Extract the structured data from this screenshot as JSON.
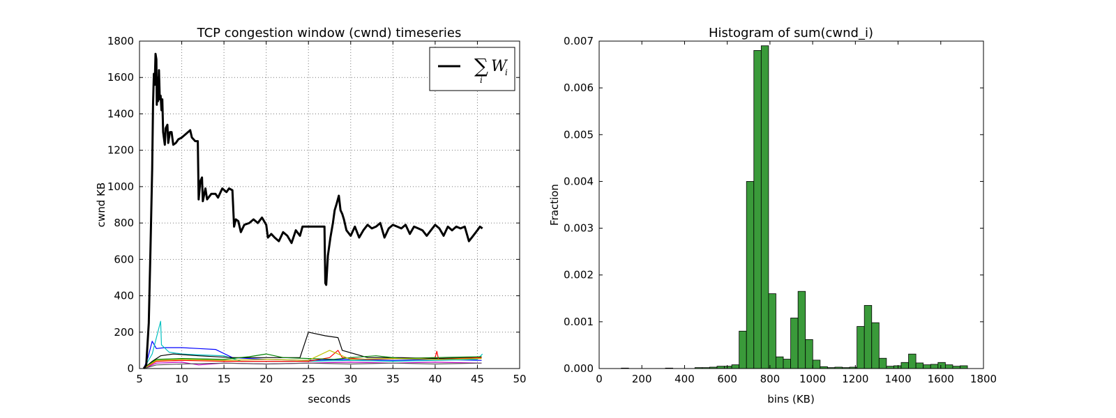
{
  "chart_data": [
    {
      "type": "line",
      "title": "TCP congestion window (cwnd) timeseries",
      "xlabel": "seconds",
      "ylabel": "cwnd KB",
      "xlim": [
        5,
        50
      ],
      "ylim": [
        0,
        1800
      ],
      "xticks": [
        5,
        10,
        15,
        20,
        25,
        30,
        35,
        40,
        45,
        50
      ],
      "yticks": [
        0,
        200,
        400,
        600,
        800,
        1000,
        1200,
        1400,
        1600,
        1800
      ],
      "grid": true,
      "legend": {
        "position": "top-right",
        "entries": [
          {
            "label_main": "∑",
            "label_sub": "i",
            "label_var": "W",
            "label_var_sub": "i",
            "color": "#000000"
          }
        ]
      },
      "series": [
        {
          "name": "∑i Wi",
          "color": "#000000",
          "width": 3,
          "points": [
            [
              5.5,
              0
            ],
            [
              5.8,
              20
            ],
            [
              6.1,
              250
            ],
            [
              6.3,
              650
            ],
            [
              6.5,
              1100
            ],
            [
              6.6,
              1450
            ],
            [
              6.7,
              1620
            ],
            [
              6.8,
              1560
            ],
            [
              6.9,
              1730
            ],
            [
              7.0,
              1700
            ],
            [
              7.05,
              1450
            ],
            [
              7.1,
              1600
            ],
            [
              7.2,
              1470
            ],
            [
              7.3,
              1640
            ],
            [
              7.4,
              1480
            ],
            [
              7.5,
              1500
            ],
            [
              7.6,
              1420
            ],
            [
              7.7,
              1480
            ],
            [
              7.8,
              1300
            ],
            [
              8.0,
              1230
            ],
            [
              8.1,
              1320
            ],
            [
              8.3,
              1340
            ],
            [
              8.4,
              1240
            ],
            [
              8.6,
              1300
            ],
            [
              8.8,
              1300
            ],
            [
              9.0,
              1230
            ],
            [
              9.3,
              1240
            ],
            [
              9.6,
              1260
            ],
            [
              10.0,
              1270
            ],
            [
              10.5,
              1290
            ],
            [
              11.0,
              1310
            ],
            [
              11.2,
              1270
            ],
            [
              11.6,
              1250
            ],
            [
              11.9,
              1250
            ],
            [
              12.0,
              930
            ],
            [
              12.2,
              1030
            ],
            [
              12.4,
              1050
            ],
            [
              12.5,
              920
            ],
            [
              12.8,
              990
            ],
            [
              13.0,
              930
            ],
            [
              13.5,
              960
            ],
            [
              14.0,
              960
            ],
            [
              14.3,
              940
            ],
            [
              14.8,
              990
            ],
            [
              15.3,
              970
            ],
            [
              15.6,
              990
            ],
            [
              16.0,
              980
            ],
            [
              16.2,
              780
            ],
            [
              16.4,
              820
            ],
            [
              16.7,
              810
            ],
            [
              17.0,
              750
            ],
            [
              17.4,
              790
            ],
            [
              18.0,
              800
            ],
            [
              18.5,
              820
            ],
            [
              19.0,
              800
            ],
            [
              19.5,
              830
            ],
            [
              20.0,
              790
            ],
            [
              20.2,
              720
            ],
            [
              20.6,
              740
            ],
            [
              21.0,
              720
            ],
            [
              21.5,
              700
            ],
            [
              22.0,
              750
            ],
            [
              22.5,
              730
            ],
            [
              23.0,
              690
            ],
            [
              23.5,
              760
            ],
            [
              24.0,
              730
            ],
            [
              24.3,
              780
            ],
            [
              26.0,
              780
            ],
            [
              26.9,
              780
            ],
            [
              27.0,
              470
            ],
            [
              27.1,
              460
            ],
            [
              27.3,
              620
            ],
            [
              27.6,
              720
            ],
            [
              27.9,
              800
            ],
            [
              28.1,
              870
            ],
            [
              28.3,
              900
            ],
            [
              28.6,
              950
            ],
            [
              28.8,
              870
            ],
            [
              29.0,
              850
            ],
            [
              29.2,
              820
            ],
            [
              29.5,
              760
            ],
            [
              30.0,
              730
            ],
            [
              30.5,
              780
            ],
            [
              31.0,
              720
            ],
            [
              31.5,
              760
            ],
            [
              32.0,
              790
            ],
            [
              32.5,
              770
            ],
            [
              33.0,
              780
            ],
            [
              33.5,
              800
            ],
            [
              34.0,
              720
            ],
            [
              34.5,
              770
            ],
            [
              35.0,
              790
            ],
            [
              35.5,
              780
            ],
            [
              36.0,
              770
            ],
            [
              36.5,
              790
            ],
            [
              37.0,
              740
            ],
            [
              37.5,
              780
            ],
            [
              38.0,
              770
            ],
            [
              38.5,
              760
            ],
            [
              39.0,
              730
            ],
            [
              39.5,
              760
            ],
            [
              40.0,
              790
            ],
            [
              40.5,
              770
            ],
            [
              41.0,
              730
            ],
            [
              41.5,
              780
            ],
            [
              42.0,
              760
            ],
            [
              42.5,
              780
            ],
            [
              43.0,
              770
            ],
            [
              43.5,
              780
            ],
            [
              44.0,
              700
            ],
            [
              44.5,
              730
            ],
            [
              45.0,
              760
            ],
            [
              45.3,
              780
            ],
            [
              45.6,
              770
            ]
          ]
        },
        {
          "name": "",
          "color": "#0000ff",
          "width": 1.2,
          "points": [
            [
              5.5,
              0
            ],
            [
              6.0,
              60
            ],
            [
              6.5,
              150
            ],
            [
              7.0,
              110
            ],
            [
              8.0,
              115
            ],
            [
              10.0,
              115
            ],
            [
              12.0,
              110
            ],
            [
              14.0,
              105
            ],
            [
              16.0,
              60
            ],
            [
              20.0,
              50
            ],
            [
              25.0,
              45
            ],
            [
              30.0,
              50
            ],
            [
              35.0,
              45
            ],
            [
              40.0,
              50
            ],
            [
              45.5,
              45
            ]
          ]
        },
        {
          "name": "",
          "color": "#00bfbf",
          "width": 1.2,
          "points": [
            [
              5.5,
              0
            ],
            [
              6.5,
              80
            ],
            [
              7.5,
              260
            ],
            [
              7.6,
              130
            ],
            [
              8.5,
              90
            ],
            [
              10.0,
              80
            ],
            [
              12.0,
              75
            ],
            [
              15.0,
              70
            ],
            [
              17.0,
              40
            ],
            [
              20.0,
              40
            ],
            [
              25.0,
              40
            ],
            [
              30.0,
              45
            ],
            [
              35.0,
              40
            ],
            [
              40.0,
              45
            ],
            [
              45.0,
              50
            ],
            [
              45.6,
              80
            ]
          ]
        },
        {
          "name": "",
          "color": "#000000",
          "width": 1.2,
          "points": [
            [
              5.5,
              0
            ],
            [
              6.5,
              40
            ],
            [
              7.5,
              70
            ],
            [
              9.0,
              80
            ],
            [
              12.0,
              70
            ],
            [
              16.0,
              60
            ],
            [
              20.0,
              60
            ],
            [
              24.0,
              60
            ],
            [
              25.0,
              200
            ],
            [
              27.0,
              180
            ],
            [
              28.5,
              170
            ],
            [
              29.0,
              100
            ],
            [
              32.0,
              60
            ],
            [
              36.0,
              60
            ],
            [
              40.0,
              55
            ],
            [
              45.5,
              60
            ]
          ]
        },
        {
          "name": "",
          "color": "#ff0000",
          "width": 1.2,
          "points": [
            [
              5.5,
              0
            ],
            [
              7.0,
              40
            ],
            [
              10.0,
              45
            ],
            [
              15.0,
              40
            ],
            [
              20.0,
              40
            ],
            [
              25.0,
              40
            ],
            [
              27.5,
              60
            ],
            [
              28.5,
              100
            ],
            [
              29.0,
              60
            ],
            [
              32.0,
              50
            ],
            [
              36.0,
              55
            ],
            [
              40.0,
              60
            ],
            [
              40.2,
              95
            ],
            [
              40.4,
              50
            ],
            [
              45.5,
              60
            ]
          ]
        },
        {
          "name": "",
          "color": "#008000",
          "width": 1.2,
          "points": [
            [
              5.5,
              0
            ],
            [
              7.0,
              50
            ],
            [
              10.0,
              55
            ],
            [
              15.0,
              50
            ],
            [
              18.0,
              65
            ],
            [
              20.0,
              80
            ],
            [
              22.0,
              60
            ],
            [
              25.0,
              55
            ],
            [
              28.0,
              50
            ],
            [
              30.0,
              60
            ],
            [
              33.0,
              70
            ],
            [
              36.0,
              55
            ],
            [
              40.0,
              60
            ],
            [
              45.5,
              65
            ]
          ]
        },
        {
          "name": "",
          "color": "#bf00bf",
          "width": 1.2,
          "points": [
            [
              5.5,
              0
            ],
            [
              7.0,
              30
            ],
            [
              10.0,
              35
            ],
            [
              12.0,
              20
            ],
            [
              15.0,
              30
            ],
            [
              20.0,
              25
            ],
            [
              25.0,
              30
            ],
            [
              30.0,
              35
            ],
            [
              35.0,
              30
            ],
            [
              40.0,
              35
            ],
            [
              45.5,
              30
            ]
          ]
        },
        {
          "name": "",
          "color": "#bfbf00",
          "width": 1.2,
          "points": [
            [
              5.5,
              0
            ],
            [
              7.0,
              45
            ],
            [
              10.0,
              50
            ],
            [
              15.0,
              45
            ],
            [
              20.0,
              50
            ],
            [
              25.0,
              45
            ],
            [
              27.5,
              100
            ],
            [
              28.5,
              80
            ],
            [
              30.0,
              50
            ],
            [
              35.0,
              55
            ],
            [
              40.0,
              50
            ],
            [
              45.5,
              55
            ]
          ]
        },
        {
          "name": "",
          "color": "#555555",
          "width": 1.2,
          "points": [
            [
              5.5,
              0
            ],
            [
              7.0,
              20
            ],
            [
              10.0,
              25
            ],
            [
              15.0,
              30
            ],
            [
              20.0,
              25
            ],
            [
              25.0,
              30
            ],
            [
              30.0,
              25
            ],
            [
              35.0,
              30
            ],
            [
              40.0,
              25
            ],
            [
              45.5,
              30
            ]
          ]
        }
      ]
    },
    {
      "type": "bar",
      "title": "Histogram of sum(cwnd_i)",
      "xlabel": "bins (KB)",
      "ylabel": "Fraction",
      "xlim": [
        0,
        1800
      ],
      "ylim": [
        0,
        0.007
      ],
      "xticks": [
        0,
        200,
        400,
        600,
        800,
        1000,
        1200,
        1400,
        1600,
        1800
      ],
      "yticks": [
        "0.000",
        "0.001",
        "0.002",
        "0.003",
        "0.004",
        "0.005",
        "0.006",
        "0.007"
      ],
      "grid": false,
      "bar_color": "#3a9a3a",
      "bar_edge": "#000000",
      "bin_width": 34.5,
      "bin_starts": [
        0,
        34.5,
        69,
        103.5,
        138,
        172.5,
        207,
        241.5,
        276,
        310.5,
        345,
        379.5,
        414,
        448.5,
        483,
        517.5,
        552,
        586.5,
        621,
        655.5,
        690,
        724.5,
        759,
        793.5,
        828,
        862.5,
        897,
        931.5,
        966,
        1000.5,
        1035,
        1069.5,
        1104,
        1138.5,
        1173,
        1207.5,
        1242,
        1276.5,
        1311,
        1345.5,
        1380,
        1414.5,
        1449,
        1483.5,
        1518,
        1552.5,
        1587,
        1621.5,
        1656,
        1690.5
      ],
      "values": [
        0,
        0,
        0,
        1e-05,
        0,
        0,
        0,
        0,
        0,
        1e-05,
        0,
        0,
        0,
        2e-05,
        2e-05,
        3e-05,
        5e-05,
        5e-05,
        8e-05,
        0.0008,
        0.004,
        0.0068,
        0.0069,
        0.0016,
        0.00025,
        0.0002,
        0.00108,
        0.00165,
        0.00062,
        0.00018,
        4e-05,
        2e-05,
        3e-05,
        2e-05,
        3e-05,
        0.0009,
        0.00135,
        0.00098,
        0.00022,
        5e-05,
        6e-05,
        0.00013,
        0.00031,
        0.00012,
        8e-05,
        9e-05,
        0.00013,
        8e-05,
        5e-05,
        6e-05
      ]
    }
  ]
}
